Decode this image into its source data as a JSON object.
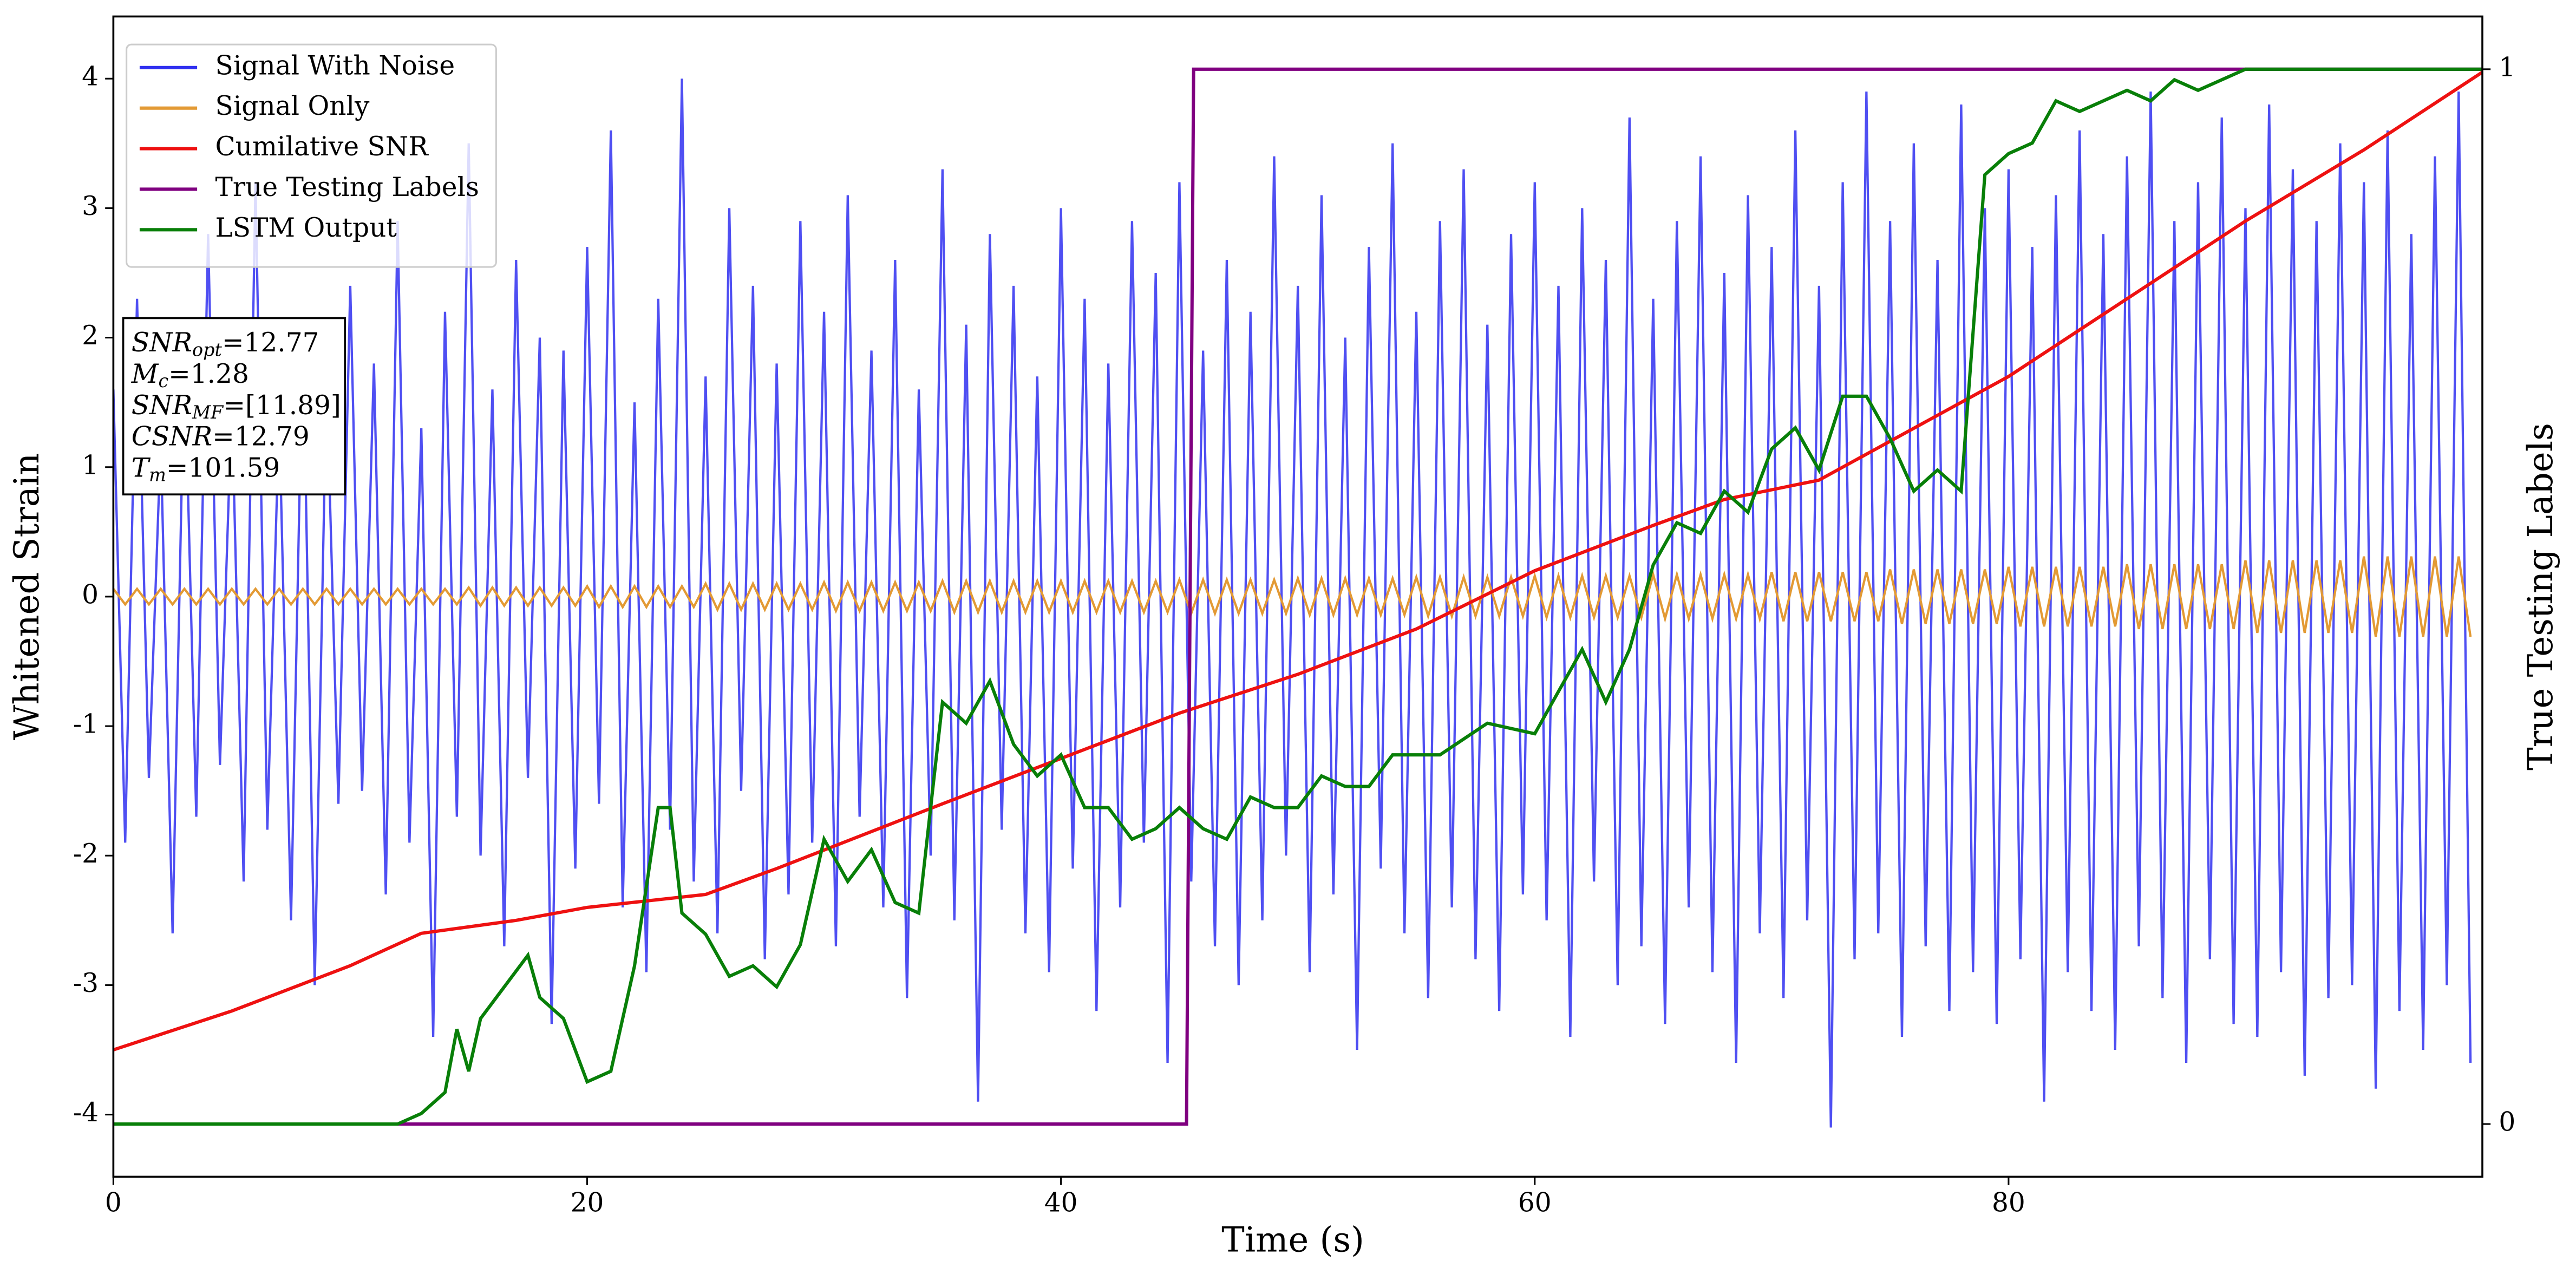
{
  "chart_data": {
    "type": "line",
    "xlabel": "Time (s)",
    "ylabel": "Whitened Strain",
    "y2label": "True Testing Labels",
    "xlim": [
      0,
      100
    ],
    "xticks": [
      0,
      20,
      40,
      60,
      80
    ],
    "ylim": [
      -4.48,
      4.48
    ],
    "yticks": [
      -4,
      -3,
      -2,
      -1,
      0,
      1,
      2,
      3,
      4
    ],
    "y2lim": [
      -0.05,
      1.05
    ],
    "y2ticks": [
      0,
      1
    ],
    "legend": "upper left",
    "annotation": [
      {
        "main": "SNR",
        "sub": "opt",
        "rest": "=12.77"
      },
      {
        "main": "M",
        "sub": "c",
        "rest": "=1.28"
      },
      {
        "main": "SNR",
        "sub": "MF",
        "rest": "=[11.89]"
      },
      {
        "main": "CSNR",
        "rest": "=12.79"
      },
      {
        "main": "T",
        "sub": "m",
        "rest": "=101.59"
      }
    ],
    "x": [
      0,
      0.5,
      1,
      1.5,
      2,
      2.5,
      3,
      3.5,
      4,
      4.5,
      5,
      5.5,
      6,
      6.5,
      7,
      7.5,
      8,
      8.5,
      9,
      9.5,
      10,
      10.5,
      11,
      11.5,
      12,
      12.5,
      13,
      13.5,
      14,
      14.5,
      15,
      15.5,
      16,
      16.5,
      17,
      17.5,
      18,
      18.5,
      19,
      19.5,
      20,
      20.5,
      21,
      21.5,
      22,
      22.5,
      23,
      23.5,
      24,
      24.5,
      25,
      25.5,
      26,
      26.5,
      27,
      27.5,
      28,
      28.5,
      29,
      29.5,
      30,
      30.5,
      31,
      31.5,
      32,
      32.5,
      33,
      33.5,
      34,
      34.5,
      35,
      35.5,
      36,
      36.5,
      37,
      37.5,
      38,
      38.5,
      39,
      39.5,
      40,
      40.5,
      41,
      41.5,
      42,
      42.5,
      43,
      43.5,
      44,
      44.5,
      45,
      45.5,
      46,
      46.5,
      47,
      47.5,
      48,
      48.5,
      49,
      49.5,
      50,
      50.5,
      51,
      51.5,
      52,
      52.5,
      53,
      53.5,
      54,
      54.5,
      55,
      55.5,
      56,
      56.5,
      57,
      57.5,
      58,
      58.5,
      59,
      59.5,
      60,
      60.5,
      61,
      61.5,
      62,
      62.5,
      63,
      63.5,
      64,
      64.5,
      65,
      65.5,
      66,
      66.5,
      67,
      67.5,
      68,
      68.5,
      69,
      69.5,
      70,
      70.5,
      71,
      71.5,
      72,
      72.5,
      73,
      73.5,
      74,
      74.5,
      75,
      75.5,
      76,
      76.5,
      77,
      77.5,
      78,
      78.5,
      79,
      79.5,
      80,
      80.5,
      81,
      81.5,
      82,
      82.5,
      83,
      83.5,
      84,
      84.5,
      85,
      85.5,
      86,
      86.5,
      87,
      87.5,
      88,
      88.5,
      89,
      89.5,
      90,
      90.5,
      91,
      91.5,
      92,
      92.5,
      93,
      93.5,
      94,
      94.5,
      95,
      95.5,
      96,
      96.5,
      97,
      97.5,
      98,
      98.5,
      99,
      99.5
    ],
    "series": [
      {
        "name": "Signal With Noise",
        "color": "#3030f0",
        "values": [
          1.6,
          -1.9,
          2.3,
          -1.4,
          1.2,
          -2.6,
          1.9,
          -1.7,
          2.8,
          -1.3,
          1.5,
          -2.2,
          3.2,
          -1.8,
          1.4,
          -2.5,
          2.1,
          -3.0,
          1.7,
          -1.6,
          2.4,
          -1.5,
          1.8,
          -2.3,
          2.9,
          -1.9,
          1.3,
          -3.4,
          2.2,
          -1.7,
          3.5,
          -2.0,
          1.6,
          -2.7,
          2.6,
          -1.4,
          2.0,
          -3.3,
          1.9,
          -2.1,
          2.7,
          -1.6,
          3.6,
          -2.4,
          1.5,
          -2.9,
          2.3,
          -1.8,
          4.0,
          -2.2,
          1.7,
          -2.6,
          3.0,
          -1.5,
          2.4,
          -2.8,
          1.8,
          -2.3,
          2.9,
          -1.9,
          2.2,
          -2.7,
          3.1,
          -1.7,
          1.9,
          -2.4,
          2.6,
          -3.1,
          1.6,
          -2.0,
          3.3,
          -2.5,
          2.1,
          -3.9,
          2.8,
          -1.8,
          2.4,
          -2.6,
          1.7,
          -2.9,
          3.0,
          -2.1,
          2.3,
          -3.2,
          1.8,
          -2.4,
          2.9,
          -1.9,
          2.5,
          -3.6,
          3.2,
          -2.2,
          1.9,
          -2.7,
          2.6,
          -3.0,
          2.2,
          -2.5,
          3.4,
          -2.0,
          2.4,
          -2.9,
          3.1,
          -2.3,
          2.0,
          -3.5,
          2.7,
          -2.1,
          3.5,
          -2.6,
          2.2,
          -3.1,
          2.9,
          -2.4,
          3.3,
          -2.8,
          2.1,
          -3.2,
          2.8,
          -2.3,
          3.2,
          -2.5,
          2.4,
          -3.4,
          3.0,
          -2.2,
          2.6,
          -3.0,
          3.7,
          -2.7,
          2.3,
          -3.3,
          2.9,
          -2.4,
          3.4,
          -2.9,
          2.5,
          -3.6,
          3.1,
          -2.6,
          2.7,
          -3.1,
          3.6,
          -2.5,
          2.4,
          -4.1,
          3.2,
          -2.8,
          3.9,
          -2.6,
          2.9,
          -3.4,
          3.5,
          -2.7,
          2.6,
          -3.2,
          3.8,
          -2.9,
          3.0,
          -3.3,
          3.3,
          -2.8,
          2.7,
          -3.9,
          3.1,
          -2.9,
          3.6,
          -3.2,
          2.8,
          -3.5,
          3.4,
          -2.7,
          3.9,
          -3.1,
          2.9,
          -3.6,
          3.2,
          -2.8,
          3.7,
          -3.3,
          3.0,
          -3.4,
          3.8,
          -2.9,
          3.3,
          -3.7,
          2.9,
          -3.1,
          3.5,
          -3.0,
          3.2,
          -3.8,
          3.6,
          -3.2,
          2.8,
          -3.5,
          3.4,
          -3.0,
          3.9,
          -3.6
        ]
      },
      {
        "name": "Signal Only",
        "color": "#e39a34",
        "values": [
          0.06,
          -0.06,
          0.06,
          -0.06,
          0.06,
          -0.06,
          0.06,
          -0.06,
          0.06,
          -0.06,
          0.06,
          -0.06,
          0.06,
          -0.06,
          0.06,
          -0.06,
          0.06,
          -0.06,
          0.06,
          -0.06,
          0.06,
          -0.06,
          0.06,
          -0.06,
          0.06,
          -0.06,
          0.06,
          -0.06,
          0.06,
          -0.06,
          0.07,
          -0.07,
          0.07,
          -0.07,
          0.07,
          -0.07,
          0.07,
          -0.07,
          0.07,
          -0.07,
          0.08,
          -0.08,
          0.08,
          -0.08,
          0.08,
          -0.08,
          0.08,
          -0.08,
          0.08,
          -0.08,
          0.1,
          -0.1,
          0.1,
          -0.1,
          0.1,
          -0.1,
          0.1,
          -0.1,
          0.1,
          -0.1,
          0.11,
          -0.11,
          0.11,
          -0.11,
          0.11,
          -0.11,
          0.11,
          -0.11,
          0.11,
          -0.11,
          0.12,
          -0.12,
          0.12,
          -0.12,
          0.12,
          -0.12,
          0.12,
          -0.12,
          0.12,
          -0.12,
          0.12,
          -0.12,
          0.12,
          -0.12,
          0.12,
          -0.12,
          0.12,
          -0.12,
          0.12,
          -0.12,
          0.13,
          -0.13,
          0.13,
          -0.13,
          0.13,
          -0.13,
          0.13,
          -0.13,
          0.13,
          -0.13,
          0.14,
          -0.14,
          0.14,
          -0.14,
          0.14,
          -0.14,
          0.14,
          -0.14,
          0.14,
          -0.14,
          0.15,
          -0.15,
          0.15,
          -0.15,
          0.15,
          -0.15,
          0.15,
          -0.15,
          0.15,
          -0.15,
          0.16,
          -0.16,
          0.16,
          -0.16,
          0.16,
          -0.16,
          0.16,
          -0.16,
          0.16,
          -0.16,
          0.17,
          -0.17,
          0.17,
          -0.17,
          0.17,
          -0.17,
          0.17,
          -0.17,
          0.17,
          -0.17,
          0.19,
          -0.19,
          0.19,
          -0.19,
          0.19,
          -0.19,
          0.19,
          -0.19,
          0.19,
          -0.19,
          0.21,
          -0.21,
          0.21,
          -0.21,
          0.21,
          -0.21,
          0.21,
          -0.21,
          0.21,
          -0.21,
          0.23,
          -0.23,
          0.23,
          -0.23,
          0.23,
          -0.23,
          0.23,
          -0.23,
          0.23,
          -0.23,
          0.25,
          -0.25,
          0.25,
          -0.25,
          0.25,
          -0.25,
          0.25,
          -0.25,
          0.25,
          -0.25,
          0.28,
          -0.28,
          0.28,
          -0.28,
          0.28,
          -0.28,
          0.28,
          -0.28,
          0.28,
          -0.28,
          0.31,
          -0.31,
          0.31,
          -0.31,
          0.31,
          -0.31,
          0.31,
          -0.31,
          0.31,
          -0.31
        ]
      },
      {
        "name": "Cumilative SNR",
        "color": "#ee1111",
        "x": [
          0,
          5,
          10,
          13,
          17,
          20,
          25,
          28,
          35,
          40,
          45,
          50,
          55,
          60,
          65,
          68,
          72,
          75,
          80,
          85,
          90,
          95,
          100
        ],
        "values": [
          -3.5,
          -3.2,
          -2.85,
          -2.6,
          -2.5,
          -2.4,
          -2.3,
          -2.1,
          -1.6,
          -1.25,
          -0.9,
          -0.6,
          -0.25,
          0.2,
          0.55,
          0.75,
          0.9,
          1.2,
          1.7,
          2.3,
          2.9,
          3.45,
          4.05
        ]
      },
      {
        "name": "True Testing Labels",
        "color": "#800080",
        "axis": "y2",
        "x": [
          0,
          45.3,
          45.6,
          100
        ],
        "values": [
          0,
          0,
          1,
          1
        ]
      },
      {
        "name": "LSTM Output",
        "color": "#087f08",
        "axis": "y2",
        "x": [
          0,
          12,
          13,
          14,
          14.5,
          15,
          15.5,
          16.5,
          17.5,
          18,
          19,
          20,
          21,
          22,
          23,
          23.5,
          24,
          25,
          26,
          27,
          28,
          29,
          30,
          31,
          32,
          33,
          34,
          35,
          36,
          37,
          38,
          39,
          40,
          41,
          42,
          43,
          44,
          45,
          46,
          47,
          48,
          49,
          50,
          51,
          52,
          53,
          54,
          56,
          58,
          60,
          62,
          63,
          64,
          65,
          66,
          67,
          68,
          69,
          70,
          71,
          72,
          73,
          74,
          75,
          76,
          77,
          78,
          79,
          80,
          81,
          82,
          83,
          84,
          85,
          86,
          87,
          88,
          90,
          95,
          100
        ],
        "values": [
          0,
          0,
          0.01,
          0.03,
          0.09,
          0.05,
          0.1,
          0.13,
          0.16,
          0.12,
          0.1,
          0.04,
          0.05,
          0.15,
          0.3,
          0.3,
          0.2,
          0.18,
          0.14,
          0.15,
          0.13,
          0.17,
          0.27,
          0.23,
          0.26,
          0.21,
          0.2,
          0.4,
          0.38,
          0.42,
          0.36,
          0.33,
          0.35,
          0.3,
          0.3,
          0.27,
          0.28,
          0.3,
          0.28,
          0.27,
          0.31,
          0.3,
          0.3,
          0.33,
          0.32,
          0.32,
          0.35,
          0.35,
          0.38,
          0.37,
          0.45,
          0.4,
          0.45,
          0.53,
          0.57,
          0.56,
          0.6,
          0.58,
          0.64,
          0.66,
          0.62,
          0.69,
          0.69,
          0.65,
          0.6,
          0.62,
          0.6,
          0.9,
          0.92,
          0.93,
          0.97,
          0.96,
          0.97,
          0.98,
          0.97,
          0.99,
          0.98,
          1.0,
          1.0,
          1.0
        ]
      }
    ]
  }
}
